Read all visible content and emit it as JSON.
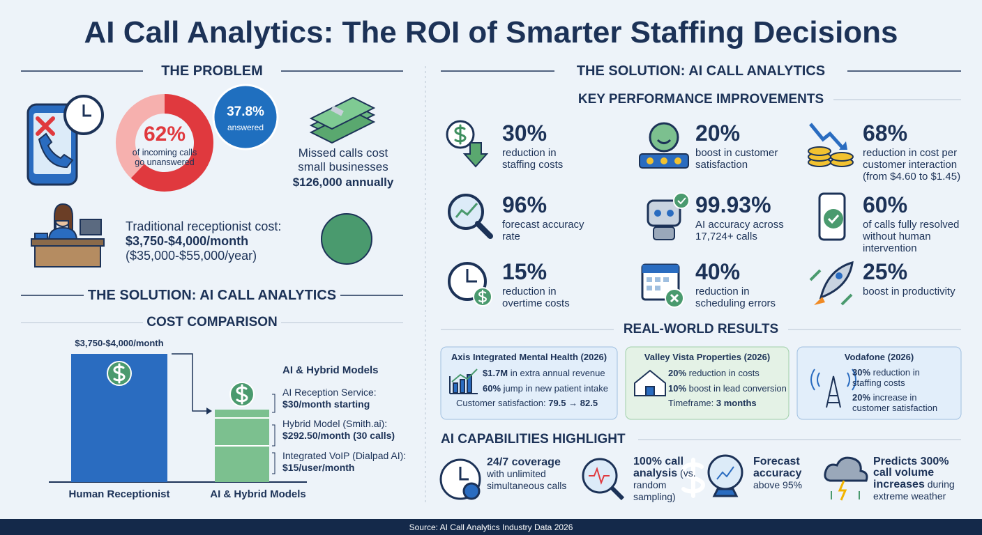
{
  "header": {
    "title": "AI Call Analytics: The ROI of Smarter Staffing Decisions"
  },
  "problem": {
    "heading": "THE PROBLEM",
    "donut": {
      "values": [
        62,
        37.8
      ],
      "value_labels": [
        "62%",
        "37.8%"
      ],
      "captions": [
        "of incoming calls go unanswered",
        "answered"
      ],
      "colors": [
        "#e0393e",
        "#f6b0ae"
      ]
    },
    "missed": {
      "text": "Missed calls cost small businesses",
      "amount": "$126,000 annually"
    },
    "receptionist": {
      "label": "Traditional receptionist cost:",
      "monthly": "$3,750-$4,000/month",
      "yearly": "($35,000-$55,000/year)"
    }
  },
  "cost_comparison": {
    "heading": "THE SOLUTION: AI CALL ANALYTICS",
    "subheading": "COST COMPARISON",
    "bar_label": "$3,750-$4,000/month",
    "legend_title": "AI & Hybrid Models",
    "items": [
      {
        "label": "AI Reception Service:",
        "value": "$30/month starting"
      },
      {
        "label": "Hybrid Model (Smith.ai):",
        "value": "$292.50/month (30 calls)"
      },
      {
        "label": "Integrated VoIP (Dialpad AI):",
        "value": "$15/user/month"
      }
    ],
    "categories": [
      "Human Receptionist",
      "AI & Hybrid Models"
    ]
  },
  "solution": {
    "heading": "THE SOLUTION: AI CALL ANALYTICS",
    "kpi_heading": "KEY PERFORMANCE IMPROVEMENTS",
    "kpis": [
      {
        "value": "30%",
        "label": "reduction in staffing costs"
      },
      {
        "value": "20%",
        "label": "boost in customer satisfaction"
      },
      {
        "value": "68%",
        "label": "reduction in cost per customer interaction (from $4.60 to $1.45)"
      },
      {
        "value": "96%",
        "label": "forecast accuracy rate"
      },
      {
        "value": "99.93%",
        "label": "AI accuracy across 17,724+ calls"
      },
      {
        "value": "60%",
        "label": "of calls fully resolved without human intervention"
      },
      {
        "value": "15%",
        "label": "reduction in overtime costs"
      },
      {
        "value": "40%",
        "label": "reduction in scheduling errors"
      },
      {
        "value": "25%",
        "label": "boost in productivity"
      }
    ]
  },
  "results": {
    "heading": "REAL-WORLD RESULTS",
    "cards": [
      {
        "title": "Axis Integrated Mental Health (2026)",
        "lines": [
          [
            {
              "text": "$1.7M",
              "weight": "bold"
            },
            {
              "text": " in extra annual revenue"
            }
          ],
          [
            {
              "text": "60%",
              "weight": "bold"
            },
            {
              "text": " jump in new patient intake"
            }
          ],
          [
            {
              "text": "Customer satisfaction: "
            },
            {
              "text": "79.5 → 82.5",
              "weight": "bold"
            }
          ]
        ]
      },
      {
        "title": "Valley Vista Properties (2026)",
        "lines": [
          [
            {
              "text": "20%",
              "weight": "bold"
            },
            {
              "text": " reduction in costs"
            }
          ],
          [
            {
              "text": "10%",
              "weight": "bold"
            },
            {
              "text": " boost in lead conversion"
            }
          ],
          [
            {
              "text": "Timeframe: "
            },
            {
              "text": "3 months",
              "weight": "bold"
            }
          ]
        ]
      },
      {
        "title": "Vodafone (2026)",
        "lines": [
          [
            {
              "text": "30%",
              "weight": "bold"
            },
            {
              "text": " reduction in staffing costs"
            }
          ],
          [
            {
              "text": "20%",
              "weight": "bold"
            },
            {
              "text": " increase in customer satisfaction"
            }
          ]
        ]
      }
    ]
  },
  "capabilities": {
    "heading": "AI CAPABILITIES HIGHLIGHT",
    "items": [
      [
        {
          "text": "24/7 coverage",
          "weight": "bold"
        },
        {
          "text": " with unlimited simultaneous calls"
        }
      ],
      [
        {
          "text": "100% call analysis",
          "weight": "bold"
        },
        {
          "text": " (vs. random sampling)"
        }
      ],
      [
        {
          "text": "Forecast accuracy",
          "weight": "bold"
        },
        {
          "text": " above 95%"
        }
      ],
      [
        {
          "text": "Predicts 300% call volume increases",
          "weight": "bold"
        },
        {
          "text": " during extreme weather"
        }
      ]
    ]
  },
  "footer": {
    "source": "Source: AI Call Analytics Industry Data 2026"
  }
}
